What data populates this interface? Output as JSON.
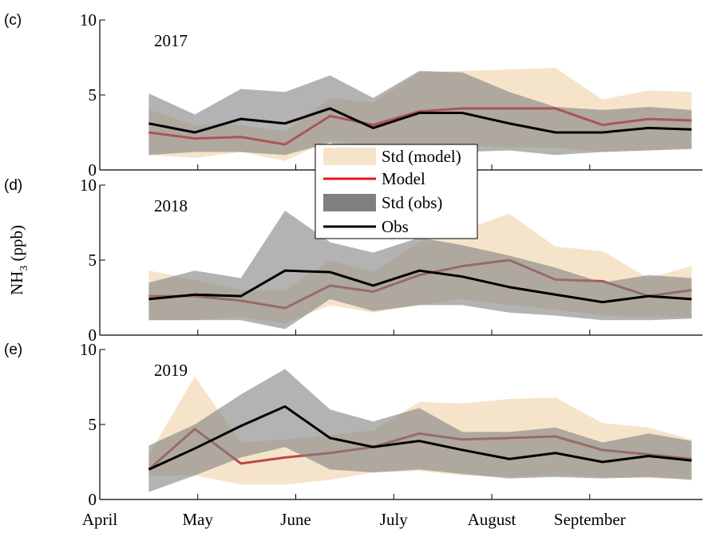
{
  "chart_data": [
    {
      "type": "band-line",
      "label": "(c)",
      "title": "2017",
      "x": [
        0.5,
        0.97,
        1.44,
        1.89,
        2.35,
        2.79,
        3.26,
        3.7,
        4.18,
        4.65,
        5.13,
        5.6,
        6.04
      ],
      "xlim": [
        0,
        6.15
      ],
      "ylim": [
        0,
        10
      ],
      "yticks": [
        0,
        5,
        10
      ],
      "series": [
        {
          "name": "Std (model)",
          "type": "band",
          "color": "#f2d9b3",
          "upper": [
            4.0,
            3.0,
            3.0,
            2.6,
            4.8,
            4.5,
            6.5,
            6.6,
            6.7,
            6.8,
            4.7,
            5.3,
            5.2
          ],
          "lower": [
            1.0,
            0.8,
            1.2,
            0.6,
            2.0,
            1.5,
            1.5,
            1.6,
            1.5,
            1.5,
            1.2,
            1.3,
            1.4
          ]
        },
        {
          "name": "Model",
          "type": "line",
          "color": "#e8141c",
          "values": [
            2.5,
            2.1,
            2.2,
            1.7,
            3.6,
            3.0,
            3.9,
            4.1,
            4.1,
            4.1,
            3.0,
            3.4,
            3.3
          ]
        },
        {
          "name": "Std (obs)",
          "type": "band",
          "color": "#808080",
          "upper": [
            5.1,
            3.7,
            5.4,
            5.2,
            6.3,
            4.8,
            6.6,
            6.5,
            5.2,
            4.2,
            4.0,
            4.2,
            4.0
          ],
          "lower": [
            1.0,
            1.2,
            1.2,
            1.0,
            1.8,
            1.0,
            0.8,
            1.2,
            1.3,
            1.0,
            1.2,
            1.3,
            1.4
          ]
        },
        {
          "name": "Obs",
          "type": "line",
          "color": "#000000",
          "values": [
            3.1,
            2.5,
            3.4,
            3.1,
            4.1,
            2.8,
            3.8,
            3.8,
            3.1,
            2.5,
            2.5,
            2.8,
            2.7
          ]
        }
      ]
    },
    {
      "type": "band-line",
      "label": "(d)",
      "title": "2018",
      "ylabel": {
        "main": "NH",
        "sub": "3",
        "rest": " (ppb)"
      },
      "x": [
        0.5,
        0.97,
        1.44,
        1.89,
        2.35,
        2.79,
        3.26,
        3.7,
        4.18,
        4.65,
        5.13,
        5.6,
        6.04
      ],
      "xlim": [
        0,
        6.15
      ],
      "ylim": [
        0,
        10
      ],
      "yticks": [
        0,
        5,
        10
      ],
      "series": [
        {
          "type": "band",
          "color": "#f2d9b3",
          "upper": [
            4.3,
            3.7,
            3.0,
            3.0,
            5.0,
            4.2,
            6.2,
            7.0,
            8.1,
            5.9,
            5.6,
            3.8,
            4.6
          ],
          "lower": [
            1.0,
            1.0,
            1.2,
            0.8,
            2.0,
            1.5,
            2.0,
            2.4,
            2.0,
            1.7,
            1.3,
            1.2,
            1.2
          ]
        },
        {
          "type": "line",
          "color": "#b94a4a",
          "values": [
            2.6,
            2.6,
            2.3,
            1.8,
            3.3,
            2.9,
            4.0,
            4.6,
            5.0,
            3.7,
            3.6,
            2.6,
            3.0
          ]
        },
        {
          "type": "band",
          "color": "#808080",
          "upper": [
            3.5,
            4.3,
            3.8,
            8.3,
            6.2,
            5.5,
            6.5,
            6.0,
            5.3,
            4.5,
            3.5,
            4.0,
            3.8
          ],
          "lower": [
            1.0,
            1.0,
            1.0,
            0.4,
            2.4,
            1.6,
            2.0,
            2.0,
            1.5,
            1.3,
            1.0,
            1.0,
            1.1
          ]
        },
        {
          "type": "line",
          "color": "#000000",
          "values": [
            2.4,
            2.7,
            2.6,
            4.3,
            4.2,
            3.3,
            4.3,
            3.9,
            3.2,
            2.7,
            2.2,
            2.6,
            2.4
          ]
        }
      ]
    },
    {
      "type": "band-line",
      "label": "(e)",
      "title": "2019",
      "x": [
        0.5,
        0.97,
        1.44,
        1.89,
        2.35,
        2.79,
        3.26,
        3.7,
        4.18,
        4.65,
        5.13,
        5.6,
        6.04
      ],
      "xlim": [
        0,
        6.15
      ],
      "ylim": [
        0,
        10
      ],
      "yticks": [
        0,
        5,
        10
      ],
      "xticks": [
        {
          "value": 0,
          "label": "April"
        },
        {
          "value": 1,
          "label": "May"
        },
        {
          "value": 2,
          "label": "June"
        },
        {
          "value": 3,
          "label": "July"
        },
        {
          "value": 4,
          "label": "August"
        },
        {
          "value": 5,
          "label": "September"
        }
      ],
      "series": [
        {
          "type": "band",
          "color": "#f2d9b3",
          "upper": [
            3.0,
            8.2,
            3.8,
            4.0,
            4.3,
            4.6,
            6.5,
            6.4,
            6.7,
            6.8,
            5.1,
            4.8,
            4.0
          ],
          "lower": [
            1.6,
            1.6,
            1.0,
            1.0,
            1.3,
            1.8,
            1.9,
            1.6,
            1.5,
            1.6,
            1.5,
            1.4,
            1.4
          ]
        },
        {
          "type": "line",
          "color": "#b94a4a",
          "values": [
            2.0,
            4.7,
            2.4,
            2.8,
            3.1,
            3.5,
            4.4,
            4.0,
            4.1,
            4.2,
            3.3,
            3.0,
            2.7
          ]
        },
        {
          "type": "band",
          "color": "#808080",
          "upper": [
            3.6,
            5.0,
            7.0,
            8.7,
            6.0,
            5.2,
            6.1,
            4.5,
            4.5,
            4.8,
            3.8,
            4.4,
            3.9
          ],
          "lower": [
            0.5,
            1.6,
            2.8,
            3.5,
            2.0,
            1.8,
            2.0,
            1.7,
            1.4,
            1.5,
            1.4,
            1.5,
            1.3
          ]
        },
        {
          "type": "line",
          "color": "#000000",
          "values": [
            2.0,
            3.4,
            4.9,
            6.2,
            4.1,
            3.5,
            3.9,
            3.3,
            2.7,
            3.1,
            2.5,
            2.9,
            2.6
          ]
        }
      ]
    }
  ]
}
